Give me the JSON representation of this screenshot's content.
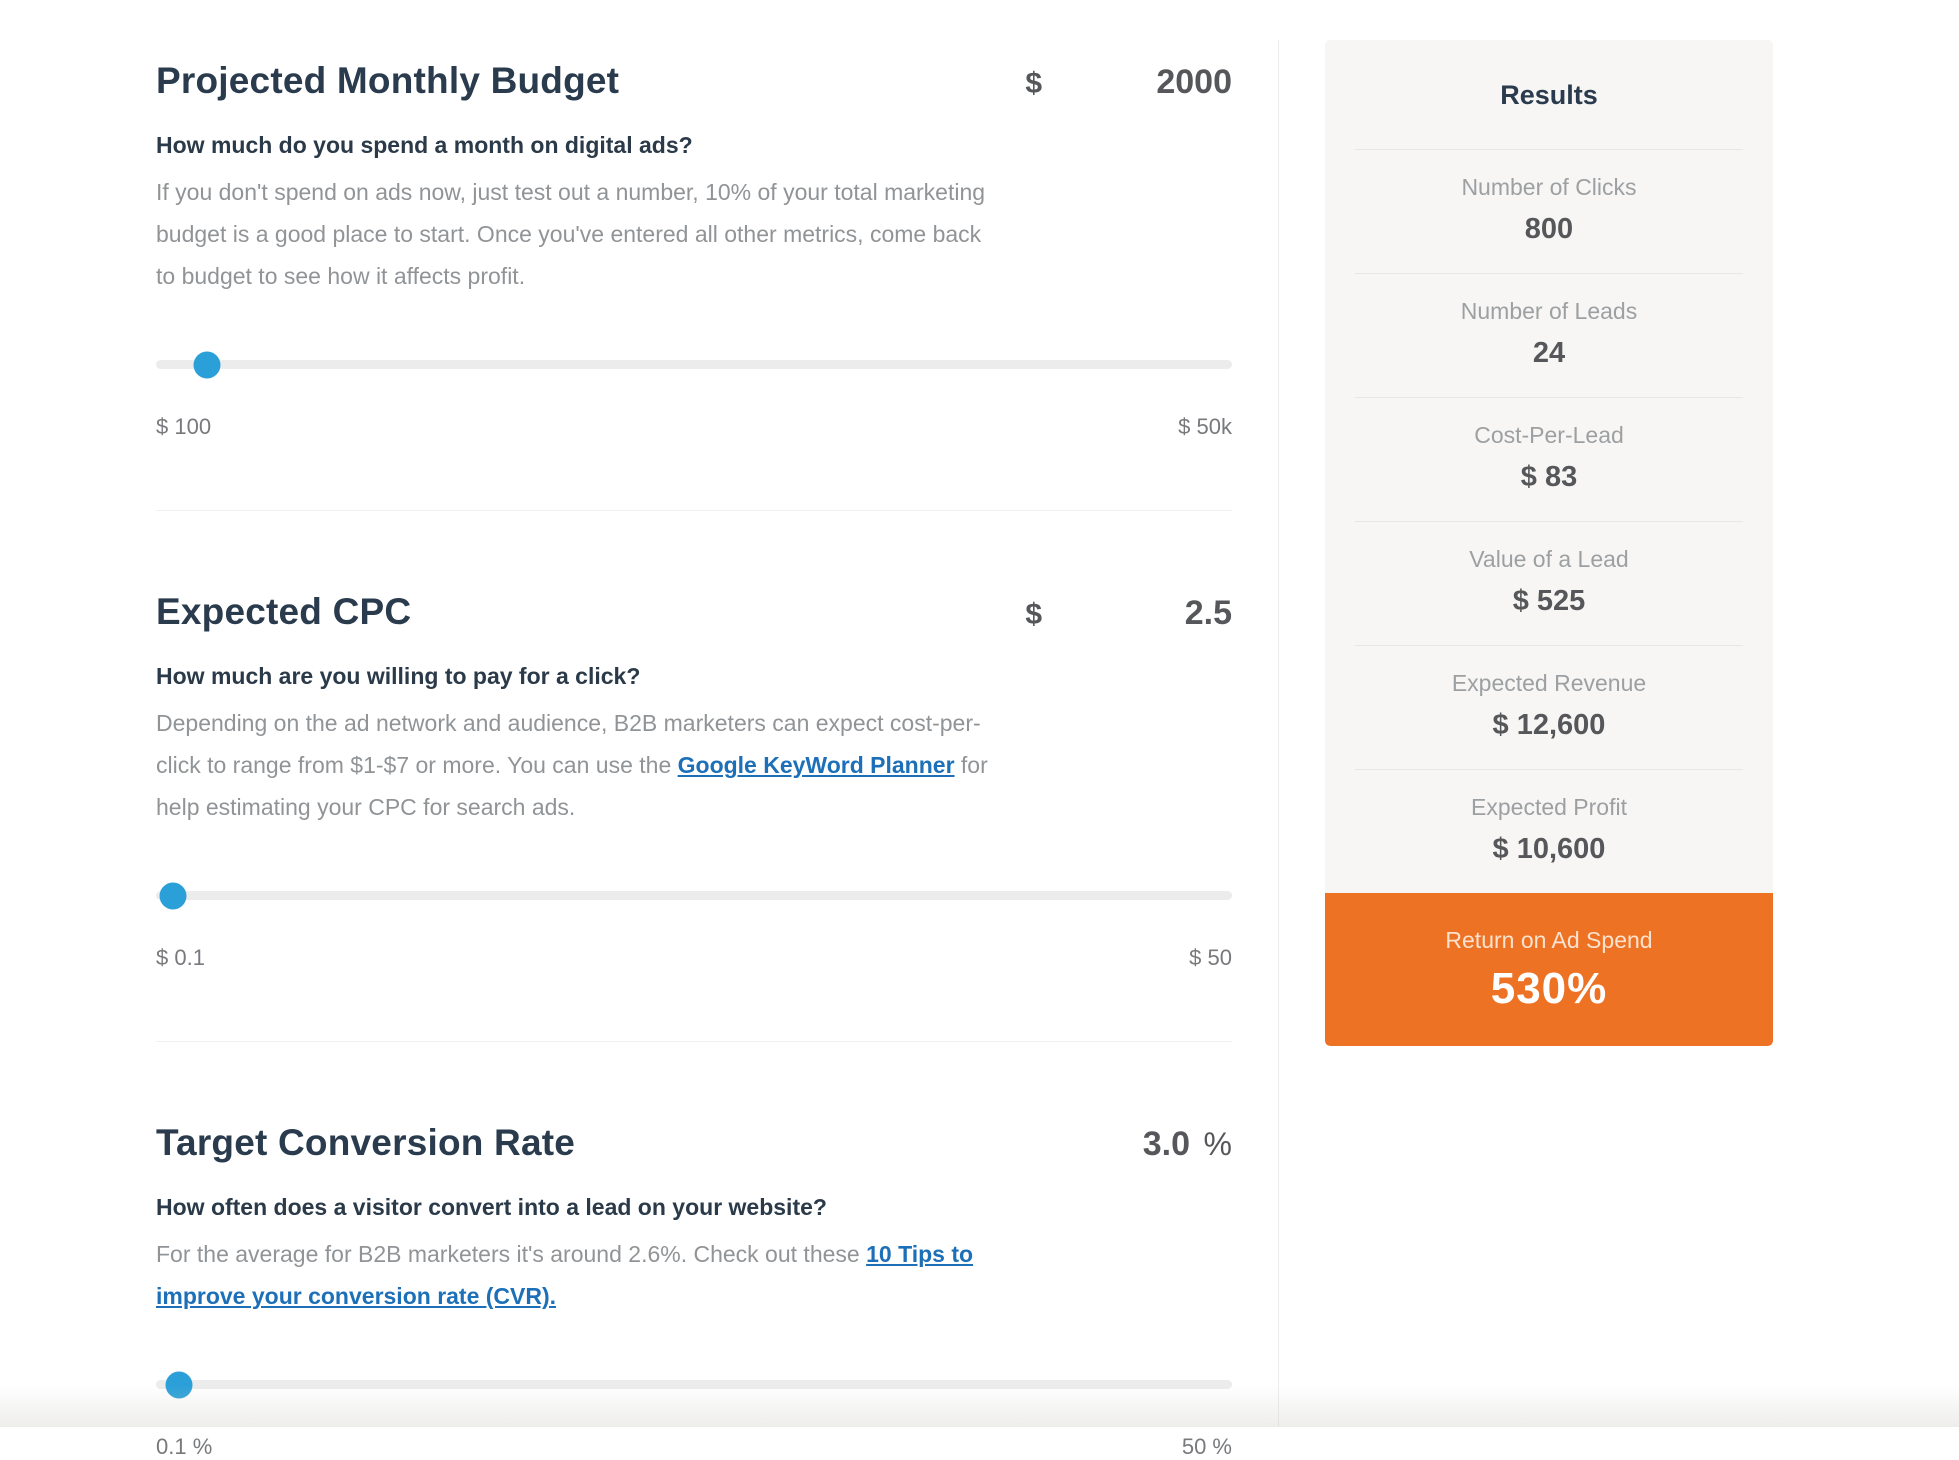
{
  "page": {
    "accent_orange": "#ee7224",
    "accent_blue": "#2b9fd8",
    "heading_navy": "#293b4d"
  },
  "sections": [
    {
      "title": "Projected Monthly Budget",
      "unit": "$",
      "value": "2000",
      "question": "How much do you spend a month on digital ads?",
      "desc": {
        "before": "If you don't spend on ads now, just test out a number, 10% of your total marketing budget is a good place to start. Once you've entered all other metrics, come back to budget to see how it affects profit.",
        "link": "",
        "after": ""
      },
      "slider": {
        "min_label": "$ 100",
        "max_label": "$ 50k",
        "position_pct": 4.7
      }
    },
    {
      "title": "Expected CPC",
      "unit": "$",
      "value": "2.5",
      "question": "How much are you willing to pay for a click?",
      "desc": {
        "before": "Depending on the ad network and audience, B2B marketers can expect cost-per-click to range from $1-$7 or more. You can use the ",
        "link": "Google KeyWord Planner",
        "after": " for help estimating your CPC for search ads."
      },
      "slider": {
        "min_label": "$ 0.1",
        "max_label": "$ 50",
        "position_pct": 1.6
      }
    },
    {
      "title": "Target Conversion Rate",
      "unit": "%",
      "value": "3.0",
      "question": "How often does a visitor convert into a lead on your website?",
      "desc": {
        "before": "For the average for B2B marketers it's around 2.6%. Check out these ",
        "link": "10 Tips to improve your conversion rate (CVR).",
        "after": ""
      },
      "slider": {
        "min_label": "0.1 %",
        "max_label": "50 %",
        "position_pct": 2.1
      }
    }
  ],
  "results": {
    "title": "Results",
    "items": [
      {
        "label": "Number of Clicks",
        "value": "800"
      },
      {
        "label": "Number of Leads",
        "value": "24"
      },
      {
        "label": "Cost-Per-Lead",
        "value": "$ 83"
      },
      {
        "label": "Value of a Lead",
        "value": "$ 525"
      },
      {
        "label": "Expected Revenue",
        "value": "$ 12,600"
      },
      {
        "label": "Expected Profit",
        "value": "$ 10,600"
      }
    ],
    "highlight": {
      "label": "Return on Ad Spend",
      "value": "530%"
    }
  }
}
